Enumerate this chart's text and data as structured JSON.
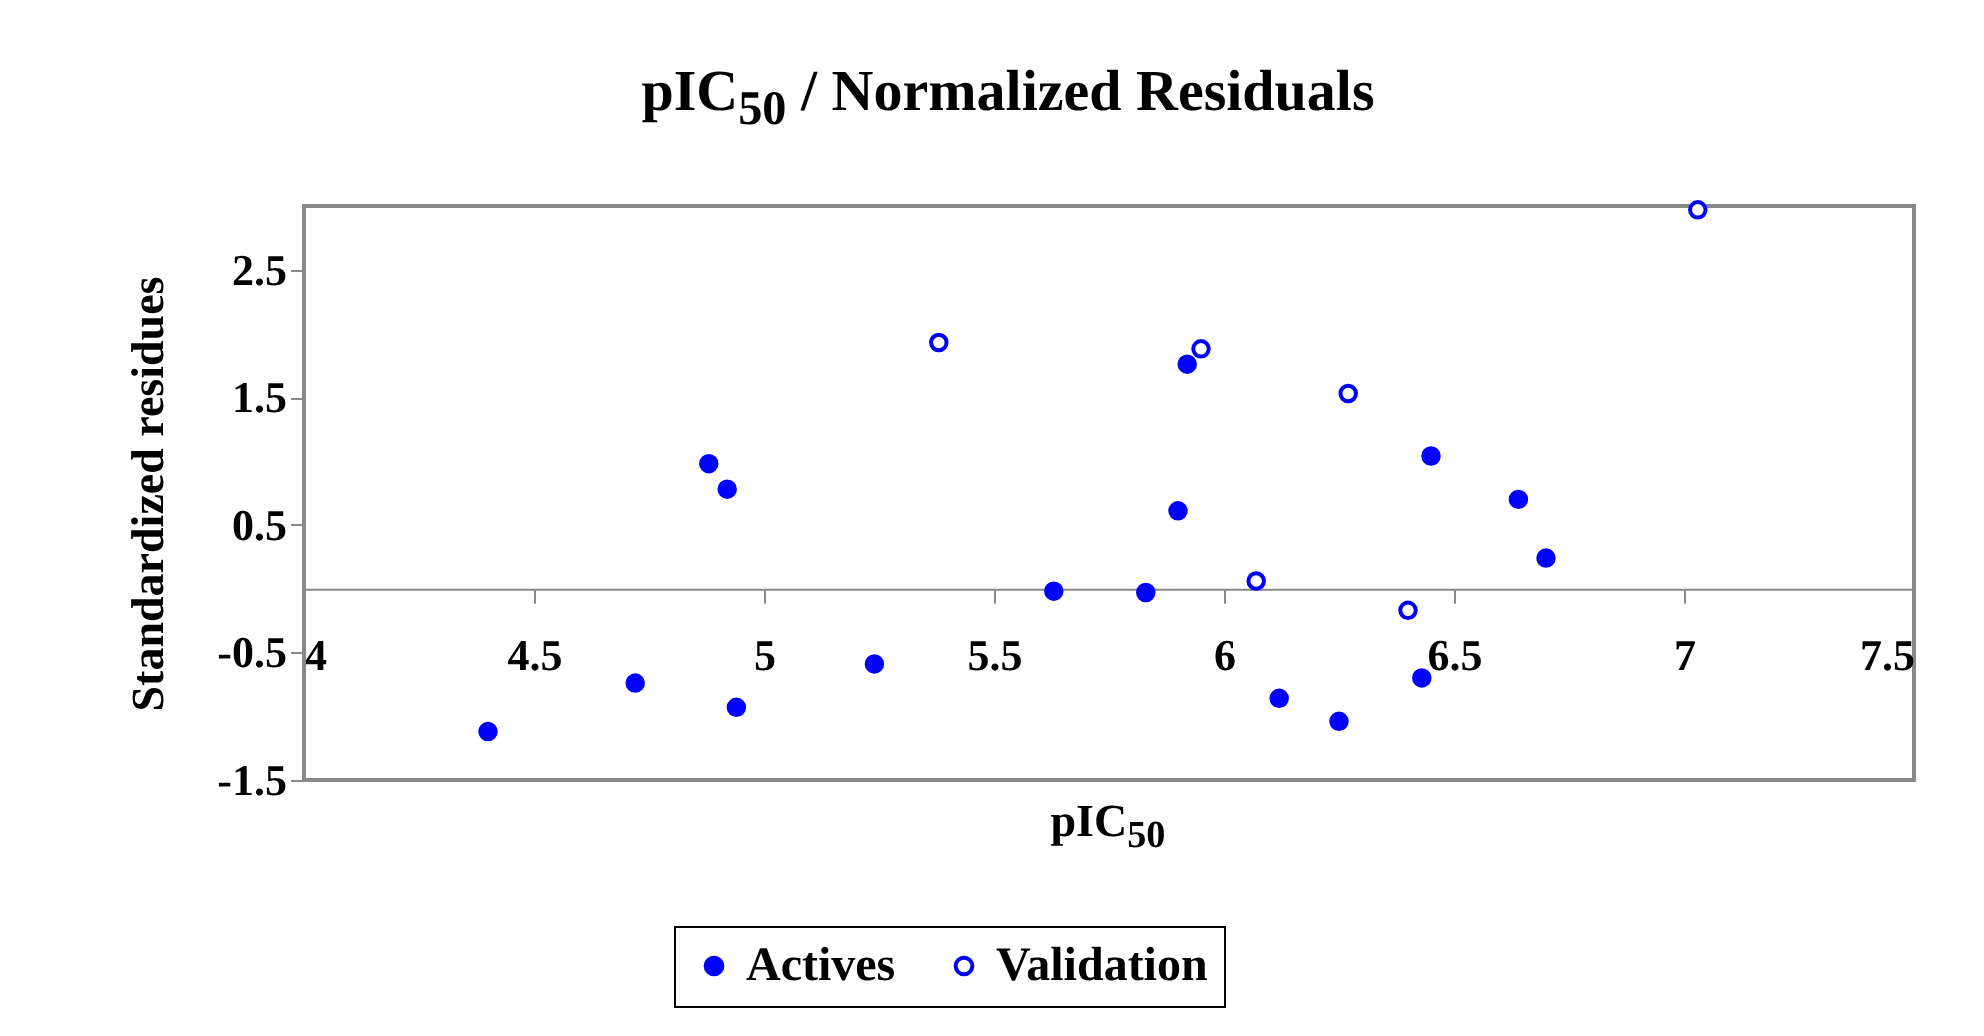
{
  "chart_data": {
    "type": "scatter",
    "title": "pIC$_{50}$ / Normalized Residuals",
    "xlabel": "pIC$_{50}$",
    "ylabel": "Standardized residues",
    "xlim": [
      4,
      7.5
    ],
    "xticks": [
      4,
      4.5,
      5,
      5.5,
      6,
      6.5,
      7,
      7.5
    ],
    "ylim": [
      -1.5,
      3
    ],
    "yticks": [
      -1.5,
      -0.5,
      0.5,
      1.5,
      2.5
    ],
    "grid": false,
    "legend": "bottom",
    "marker": "circle",
    "series": [
      {
        "name": "Actives",
        "color": "#0000ff",
        "x": [
          4.4,
          4.72,
          4.88,
          4.92,
          4.94,
          5.24,
          5.63,
          5.83,
          5.9,
          5.92,
          6.12,
          6.25,
          6.43,
          6.45,
          6.64,
          6.7
        ],
        "values": [
          -1.12,
          -0.74,
          0.98,
          0.78,
          -0.93,
          -0.59,
          -0.02,
          -0.03,
          0.61,
          1.76,
          -0.86,
          -1.04,
          -0.7,
          1.04,
          0.7,
          0.24
        ]
      },
      {
        "name": "Validation",
        "color": "#0000ff",
        "x": [
          5.38,
          5.95,
          6.07,
          6.27,
          6.4,
          7.03
        ],
        "values": [
          1.93,
          1.88,
          0.06,
          1.53,
          -0.17,
          2.97
        ]
      }
    ]
  }
}
